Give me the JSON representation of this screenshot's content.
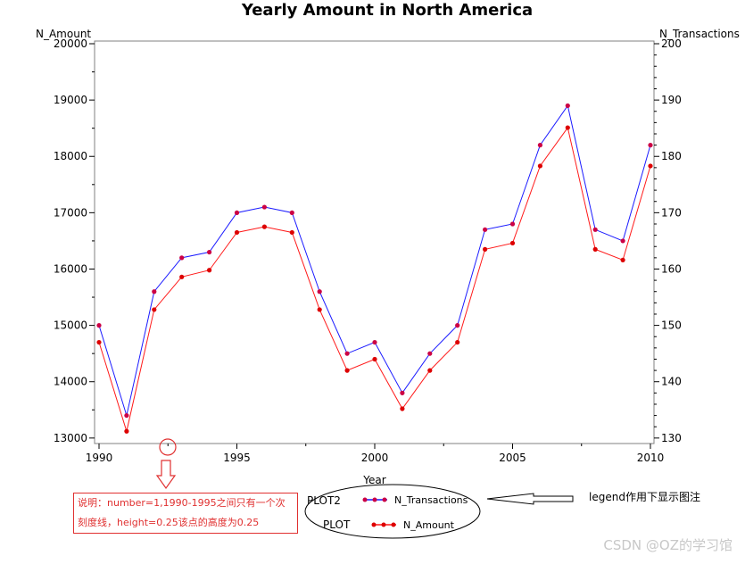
{
  "chart_data": {
    "type": "line",
    "title": "Yearly Amount in North America",
    "xlabel": "Year",
    "ylabel": "N_Amount",
    "y2label": "N_Transactions",
    "x": [
      1990,
      1991,
      1992,
      1993,
      1994,
      1995,
      1996,
      1997,
      1998,
      1999,
      2000,
      2001,
      2002,
      2003,
      2004,
      2005,
      2006,
      2007,
      2008,
      2009,
      2010
    ],
    "xlim": [
      1990,
      2010
    ],
    "xticks": [
      "1990",
      "1995",
      "2000",
      "2005",
      "2010"
    ],
    "ylim": [
      12950,
      20000
    ],
    "yticks": [
      "13000",
      "14000",
      "15000",
      "16000",
      "17000",
      "18000",
      "19000",
      "20000"
    ],
    "y2lim": [
      129.5,
      200
    ],
    "y2ticks": [
      "130",
      "140",
      "150",
      "160",
      "170",
      "180",
      "190",
      "200"
    ],
    "series": [
      {
        "name": "N_Transactions",
        "axis": "right",
        "color": "#1a1aff",
        "marker_color": "#cc0044",
        "values": [
          150,
          134,
          156,
          162,
          163,
          170,
          171,
          170,
          156,
          145,
          147,
          138,
          145,
          150,
          167,
          168,
          182,
          189,
          167,
          165,
          182
        ]
      },
      {
        "name": "N_Amount",
        "axis": "left",
        "color": "#ff1a1a",
        "marker_color": "#dd0000",
        "values": [
          14700,
          13120,
          15280,
          15860,
          15980,
          16650,
          16750,
          16650,
          15280,
          14200,
          14400,
          13520,
          14200,
          14700,
          16350,
          16460,
          17830,
          18510,
          16350,
          16160,
          17830
        ]
      }
    ],
    "legend": {
      "position": "bottom",
      "rows": [
        {
          "label": "PLOT2",
          "entry": "N_Transactions"
        },
        {
          "label": "PLOT",
          "entry": "N_Amount"
        }
      ]
    },
    "grid": false
  },
  "annotations": {
    "note_line1": "说明：number=1,1990-1995之间只有一个次",
    "note_line2": "刻度线，height=0.25该点的高度为0.25",
    "legend_note": "legend作用下显示图注"
  },
  "watermark": "CSDN @OZ的学习馆"
}
